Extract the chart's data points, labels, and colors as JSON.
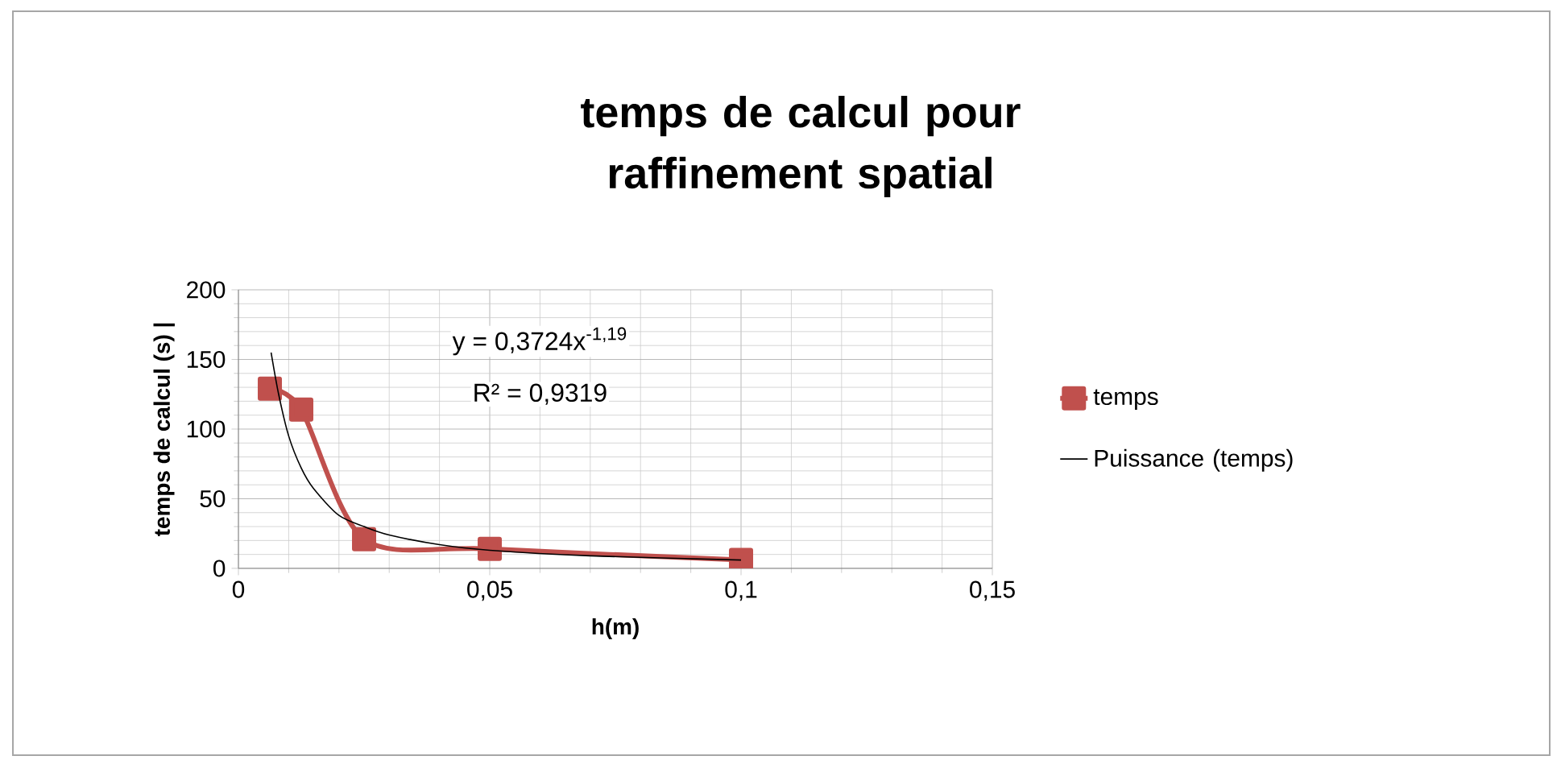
{
  "chart_data": {
    "type": "line",
    "title": "temps de calcul pour raffinement spatial",
    "xlabel": "h(m)",
    "ylabel": "temps de calcul (s) |",
    "series": [
      {
        "name": "temps",
        "color": "#c0504d",
        "marker": "square",
        "x": [
          0.00625,
          0.0125,
          0.025,
          0.05,
          0.1
        ],
        "values": [
          129,
          114,
          21,
          14,
          6
        ]
      },
      {
        "name": "Puissance (temps)",
        "color": "#000000",
        "marker": "none",
        "x": [
          0.0065,
          0.008,
          0.01,
          0.0125,
          0.015,
          0.02,
          0.025,
          0.03,
          0.04,
          0.05,
          0.07,
          0.1
        ],
        "values": [
          155,
          125,
          95,
          72,
          57,
          38,
          30,
          24,
          17,
          13,
          9,
          6
        ]
      }
    ],
    "xlim": [
      0,
      0.15
    ],
    "ylim": [
      0,
      200
    ],
    "xticks": [
      0,
      {
        "value": 0.05,
        "label": "0,05"
      },
      {
        "value": 0.1,
        "label": "0,1"
      },
      {
        "value": 0.15,
        "label": "0,15"
      }
    ],
    "yticks": [
      0,
      50,
      100,
      150,
      200
    ],
    "grid": true,
    "legend": "right",
    "annotations": [
      "y = 0,3724x$^{-1,19}$",
      "R² = 0,9319"
    ]
  }
}
